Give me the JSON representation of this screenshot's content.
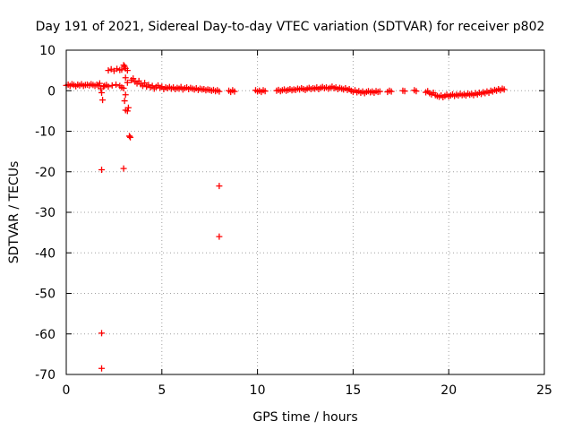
{
  "chart_data": {
    "type": "scatter",
    "title": "Day 191 of 2021, Sidereal Day-to-day VTEC variation (SDTVAR) for receiver p802",
    "xlabel": "GPS time / hours",
    "ylabel": "SDTVAR / TECUs",
    "xlim": [
      0,
      25
    ],
    "ylim": [
      -70,
      10
    ],
    "xticks": [
      0,
      5,
      10,
      15,
      20,
      25
    ],
    "yticks": [
      10,
      0,
      -10,
      -20,
      -30,
      -40,
      -50,
      -60,
      -70
    ],
    "grid": true,
    "legend": "none",
    "series": [
      {
        "name": "SDTVAR",
        "color": "#ff0000",
        "marker": "plus",
        "points": [
          [
            0.0,
            1.3
          ],
          [
            0.1,
            1.5
          ],
          [
            0.2,
            1.2
          ],
          [
            0.3,
            1.6
          ],
          [
            0.4,
            1.4
          ],
          [
            0.5,
            1.1
          ],
          [
            0.6,
            1.5
          ],
          [
            0.7,
            1.3
          ],
          [
            0.8,
            1.6
          ],
          [
            0.9,
            1.2
          ],
          [
            1.0,
            1.4
          ],
          [
            1.1,
            1.5
          ],
          [
            1.2,
            1.3
          ],
          [
            1.3,
            1.6
          ],
          [
            1.4,
            1.4
          ],
          [
            1.5,
            1.2
          ],
          [
            1.6,
            1.5
          ],
          [
            1.7,
            1.3
          ],
          [
            1.75,
            1.8
          ],
          [
            1.8,
            0.5
          ],
          [
            1.85,
            -0.5
          ],
          [
            1.9,
            -2.3
          ],
          [
            1.95,
            1.0
          ],
          [
            2.0,
            1.2
          ],
          [
            2.1,
            1.4
          ],
          [
            2.2,
            1.0
          ],
          [
            2.2,
            5.0
          ],
          [
            2.35,
            5.3
          ],
          [
            2.5,
            4.9
          ],
          [
            2.65,
            5.4
          ],
          [
            2.8,
            5.1
          ],
          [
            2.9,
            5.2
          ],
          [
            2.4,
            1.3
          ],
          [
            2.6,
            1.5
          ],
          [
            2.8,
            1.2
          ],
          [
            2.9,
            0.8
          ],
          [
            3.0,
            6.3
          ],
          [
            3.05,
            6.0
          ],
          [
            3.1,
            5.5
          ],
          [
            3.2,
            5.0
          ],
          [
            3.1,
            3.2
          ],
          [
            3.2,
            2.0
          ],
          [
            3.0,
            0.6
          ],
          [
            3.1,
            -1.0
          ],
          [
            3.05,
            -2.5
          ],
          [
            3.1,
            -4.8
          ],
          [
            3.2,
            -5.0
          ],
          [
            3.25,
            -4.2
          ],
          [
            3.3,
            -11.2
          ],
          [
            3.35,
            -11.5
          ],
          [
            3.4,
            2.6
          ],
          [
            3.5,
            3.0
          ],
          [
            3.6,
            2.2
          ],
          [
            3.7,
            1.8
          ],
          [
            3.8,
            2.4
          ],
          [
            3.9,
            1.6
          ],
          [
            4.0,
            1.2
          ],
          [
            4.1,
            1.9
          ],
          [
            4.2,
            1.0
          ],
          [
            4.3,
            1.4
          ],
          [
            4.4,
            0.8
          ],
          [
            4.5,
            1.2
          ],
          [
            4.6,
            0.5
          ],
          [
            4.7,
            0.9
          ],
          [
            4.8,
            1.3
          ],
          [
            4.9,
            0.7
          ],
          [
            5.0,
            1.0
          ],
          [
            5.1,
            0.4
          ],
          [
            5.2,
            0.8
          ],
          [
            5.3,
            0.6
          ],
          [
            5.4,
            0.9
          ],
          [
            5.5,
            0.5
          ],
          [
            5.6,
            0.8
          ],
          [
            5.7,
            0.4
          ],
          [
            5.8,
            0.7
          ],
          [
            5.9,
            0.5
          ],
          [
            6.0,
            0.9
          ],
          [
            6.1,
            0.3
          ],
          [
            6.2,
            0.6
          ],
          [
            6.3,
            0.8
          ],
          [
            6.4,
            0.4
          ],
          [
            6.5,
            0.7
          ],
          [
            6.6,
            0.5
          ],
          [
            6.7,
            0.3
          ],
          [
            6.8,
            0.6
          ],
          [
            6.9,
            0.2
          ],
          [
            7.0,
            0.5
          ],
          [
            7.1,
            0.3
          ],
          [
            7.2,
            0.4
          ],
          [
            7.3,
            0.1
          ],
          [
            7.4,
            0.3
          ],
          [
            7.5,
            0.2
          ],
          [
            7.6,
            0.0
          ],
          [
            7.7,
            0.2
          ],
          [
            7.8,
            -0.1
          ],
          [
            7.9,
            0.1
          ],
          [
            8.0,
            -0.2
          ],
          [
            8.5,
            0.0
          ],
          [
            8.6,
            -0.3
          ],
          [
            8.7,
            0.1
          ],
          [
            8.8,
            -0.2
          ],
          [
            1.85,
            -19.5
          ],
          [
            3.0,
            -19.2
          ],
          [
            8.0,
            -23.5
          ],
          [
            8.0,
            -36.0
          ],
          [
            1.85,
            -59.8
          ],
          [
            1.85,
            -68.5
          ],
          [
            9.9,
            0.1
          ],
          [
            10.0,
            -0.2
          ],
          [
            10.1,
            0.0
          ],
          [
            10.2,
            -0.3
          ],
          [
            10.3,
            0.1
          ],
          [
            10.4,
            -0.1
          ],
          [
            11.0,
            0.0
          ],
          [
            11.1,
            0.2
          ],
          [
            11.2,
            -0.1
          ],
          [
            11.3,
            0.1
          ],
          [
            11.4,
            0.3
          ],
          [
            11.5,
            0.0
          ],
          [
            11.6,
            0.2
          ],
          [
            11.7,
            0.4
          ],
          [
            11.8,
            0.1
          ],
          [
            11.9,
            0.3
          ],
          [
            12.0,
            0.2
          ],
          [
            12.1,
            0.5
          ],
          [
            12.2,
            0.3
          ],
          [
            12.3,
            0.6
          ],
          [
            12.4,
            0.4
          ],
          [
            12.5,
            0.2
          ],
          [
            12.6,
            0.5
          ],
          [
            12.7,
            0.7
          ],
          [
            12.8,
            0.4
          ],
          [
            12.9,
            0.6
          ],
          [
            13.0,
            0.5
          ],
          [
            13.1,
            0.8
          ],
          [
            13.2,
            0.4
          ],
          [
            13.3,
            0.7
          ],
          [
            13.4,
            0.9
          ],
          [
            13.5,
            0.6
          ],
          [
            13.6,
            0.8
          ],
          [
            13.7,
            0.5
          ],
          [
            13.8,
            0.7
          ],
          [
            13.9,
            1.0
          ],
          [
            14.0,
            0.6
          ],
          [
            14.1,
            0.8
          ],
          [
            14.2,
            0.4
          ],
          [
            14.3,
            0.7
          ],
          [
            14.4,
            0.5
          ],
          [
            14.5,
            0.3
          ],
          [
            14.6,
            0.6
          ],
          [
            14.7,
            0.2
          ],
          [
            14.8,
            0.4
          ],
          [
            14.9,
            0.0
          ],
          [
            15.0,
            -0.3
          ],
          [
            15.1,
            0.1
          ],
          [
            15.2,
            -0.4
          ],
          [
            15.3,
            -0.1
          ],
          [
            15.4,
            -0.5
          ],
          [
            15.5,
            -0.2
          ],
          [
            15.6,
            -0.6
          ],
          [
            15.7,
            -0.3
          ],
          [
            15.8,
            -0.1
          ],
          [
            15.9,
            -0.4
          ],
          [
            16.0,
            -0.2
          ],
          [
            16.1,
            -0.5
          ],
          [
            16.2,
            -0.1
          ],
          [
            16.3,
            -0.3
          ],
          [
            16.4,
            -0.2
          ],
          [
            16.8,
            -0.3
          ],
          [
            16.9,
            0.0
          ],
          [
            17.0,
            -0.2
          ],
          [
            17.6,
            0.0
          ],
          [
            17.7,
            -0.1
          ],
          [
            18.2,
            0.1
          ],
          [
            18.3,
            -0.1
          ],
          [
            18.8,
            -0.4
          ],
          [
            18.9,
            -0.1
          ],
          [
            19.0,
            -0.6
          ],
          [
            19.1,
            -0.9
          ],
          [
            19.2,
            -0.5
          ],
          [
            19.3,
            -1.1
          ],
          [
            19.4,
            -1.3
          ],
          [
            19.5,
            -1.5
          ],
          [
            19.6,
            -1.2
          ],
          [
            19.7,
            -1.6
          ],
          [
            19.8,
            -1.3
          ],
          [
            19.9,
            -1.0
          ],
          [
            20.0,
            -1.4
          ],
          [
            20.1,
            -1.2
          ],
          [
            20.2,
            -0.9
          ],
          [
            20.3,
            -1.3
          ],
          [
            20.4,
            -1.0
          ],
          [
            20.5,
            -1.2
          ],
          [
            20.6,
            -0.8
          ],
          [
            20.7,
            -1.1
          ],
          [
            20.8,
            -0.9
          ],
          [
            20.9,
            -1.2
          ],
          [
            21.0,
            -0.7
          ],
          [
            21.1,
            -1.0
          ],
          [
            21.2,
            -0.8
          ],
          [
            21.3,
            -1.1
          ],
          [
            21.4,
            -0.6
          ],
          [
            21.5,
            -0.9
          ],
          [
            21.6,
            -0.5
          ],
          [
            21.7,
            -0.8
          ],
          [
            21.8,
            -0.4
          ],
          [
            21.9,
            -0.6
          ],
          [
            22.0,
            -0.2
          ],
          [
            22.1,
            -0.5
          ],
          [
            22.2,
            0.0
          ],
          [
            22.3,
            -0.2
          ],
          [
            22.4,
            0.2
          ],
          [
            22.5,
            0.0
          ],
          [
            22.6,
            0.4
          ],
          [
            22.7,
            0.1
          ],
          [
            22.8,
            0.5
          ],
          [
            22.9,
            0.3
          ]
        ]
      }
    ]
  }
}
